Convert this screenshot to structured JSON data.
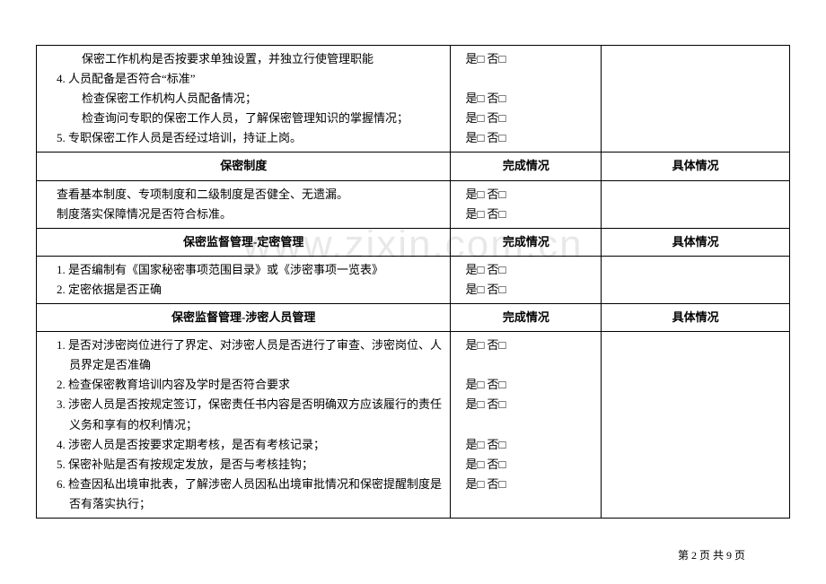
{
  "watermark": "www.zixin.com.cn",
  "checkbox_yes": "是□",
  "checkbox_no": "否□",
  "footer": "第 2 页 共 9 页",
  "headers": {
    "status": "完成情况",
    "detail": "具体情况"
  },
  "sections": [
    {
      "type": "rows_block",
      "lines": [
        {
          "text": "保密工作机构是否按要求单独设置，并独立行使管理职能",
          "num": "",
          "indent": true,
          "has_check": true
        },
        {
          "text": "人员配备是否符合“标准”",
          "num": "4.",
          "indent": false,
          "has_check": false
        },
        {
          "text": "检查保密工作机构人员配备情况；",
          "num": "",
          "indent": true,
          "has_check": true
        },
        {
          "text": "检查询问专职的保密工作人员，了解保密管理知识的掌握情况；",
          "num": "",
          "indent": true,
          "has_check": true
        },
        {
          "text": "专职保密工作人员是否经过培训，持证上岗。",
          "num": "5.",
          "indent": false,
          "has_check": true
        }
      ]
    },
    {
      "type": "header",
      "title": "保密制度"
    },
    {
      "type": "rows_block",
      "lines": [
        {
          "text": "查看基本制度、专项制度和二级制度是否健全、无遗漏。",
          "num": "",
          "noindent": true,
          "has_check": true
        },
        {
          "text": "制度落实保障情况是否符合标准。",
          "num": "",
          "noindent": true,
          "has_check": true
        }
      ]
    },
    {
      "type": "header",
      "title": "保密监督管理-定密管理"
    },
    {
      "type": "rows_block",
      "lines": [
        {
          "text": "是否编制有《国家秘密事项范围目录》或《涉密事项一览表》",
          "num": "1.",
          "indent": false,
          "has_check": true
        },
        {
          "text": "定密依据是否正确",
          "num": "2.",
          "indent": false,
          "has_check": true
        }
      ]
    },
    {
      "type": "header",
      "title": "保密监督管理-涉密人员管理"
    },
    {
      "type": "rows_block",
      "lines": [
        {
          "text": "是否对涉密岗位进行了界定、对涉密人员是否进行了审查、涉密岗位、人员界定是否准确",
          "num": "1.",
          "indent": false,
          "has_check": true
        },
        {
          "text": "检查保密教育培训内容及学时是否符合要求",
          "num": "2.",
          "indent": false,
          "has_check": true
        },
        {
          "text": "涉密人员是否按规定签订，保密责任书内容是否明确双方应该履行的责任义务和享有的权利情况；",
          "num": "3.",
          "indent": false,
          "has_check": true
        },
        {
          "text": "涉密人员是否按要求定期考核，是否有考核记录；",
          "num": "4.",
          "indent": false,
          "has_check": true
        },
        {
          "text": "保密补贴是否有按规定发放，是否与考核挂钩；",
          "num": "5.",
          "indent": false,
          "has_check": true
        },
        {
          "text": "检查因私出境审批表，了解涉密人员因私出境审批情况和保密提醒制度是否有落实执行；",
          "num": "6.",
          "indent": false,
          "has_check": true
        }
      ]
    }
  ]
}
